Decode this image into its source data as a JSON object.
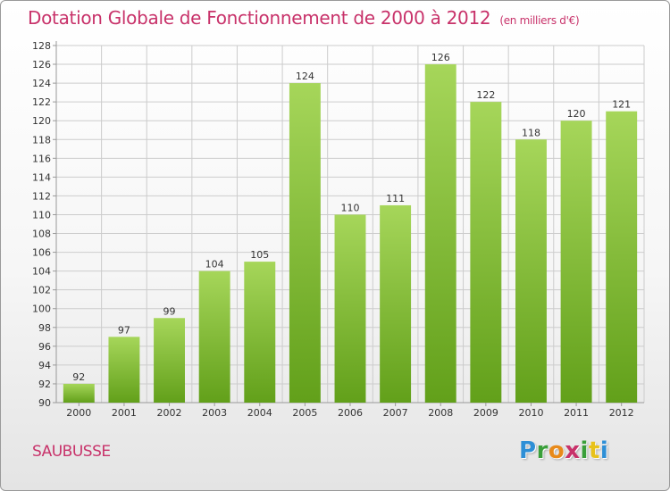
{
  "header": {
    "title": "Dotation Globale de Fonctionnement de 2000 à 2012",
    "subtitle": "(en milliers d'€)"
  },
  "footer": {
    "commune": "SAUBUSSE",
    "logo_text": "Proxiti"
  },
  "colors": {
    "title": "#c8326a",
    "bar_light": "#a6d65a",
    "bar_dark": "#62a01a",
    "grid": "#cccccc",
    "axis": "#999999"
  },
  "chart_data": {
    "type": "bar",
    "title": "Dotation Globale de Fonctionnement de 2000 à 2012",
    "subtitle": "(en milliers d'€)",
    "categories": [
      "2000",
      "2001",
      "2002",
      "2003",
      "2004",
      "2005",
      "2006",
      "2007",
      "2008",
      "2009",
      "2010",
      "2011",
      "2012"
    ],
    "values": [
      92,
      97,
      99,
      104,
      105,
      124,
      110,
      111,
      126,
      122,
      118,
      120,
      121
    ],
    "ylim": [
      90,
      128
    ],
    "yticks": [
      90,
      92,
      94,
      96,
      98,
      100,
      102,
      104,
      106,
      108,
      110,
      112,
      114,
      116,
      118,
      120,
      122,
      124,
      126,
      128
    ],
    "grid": true,
    "legend": "none"
  }
}
